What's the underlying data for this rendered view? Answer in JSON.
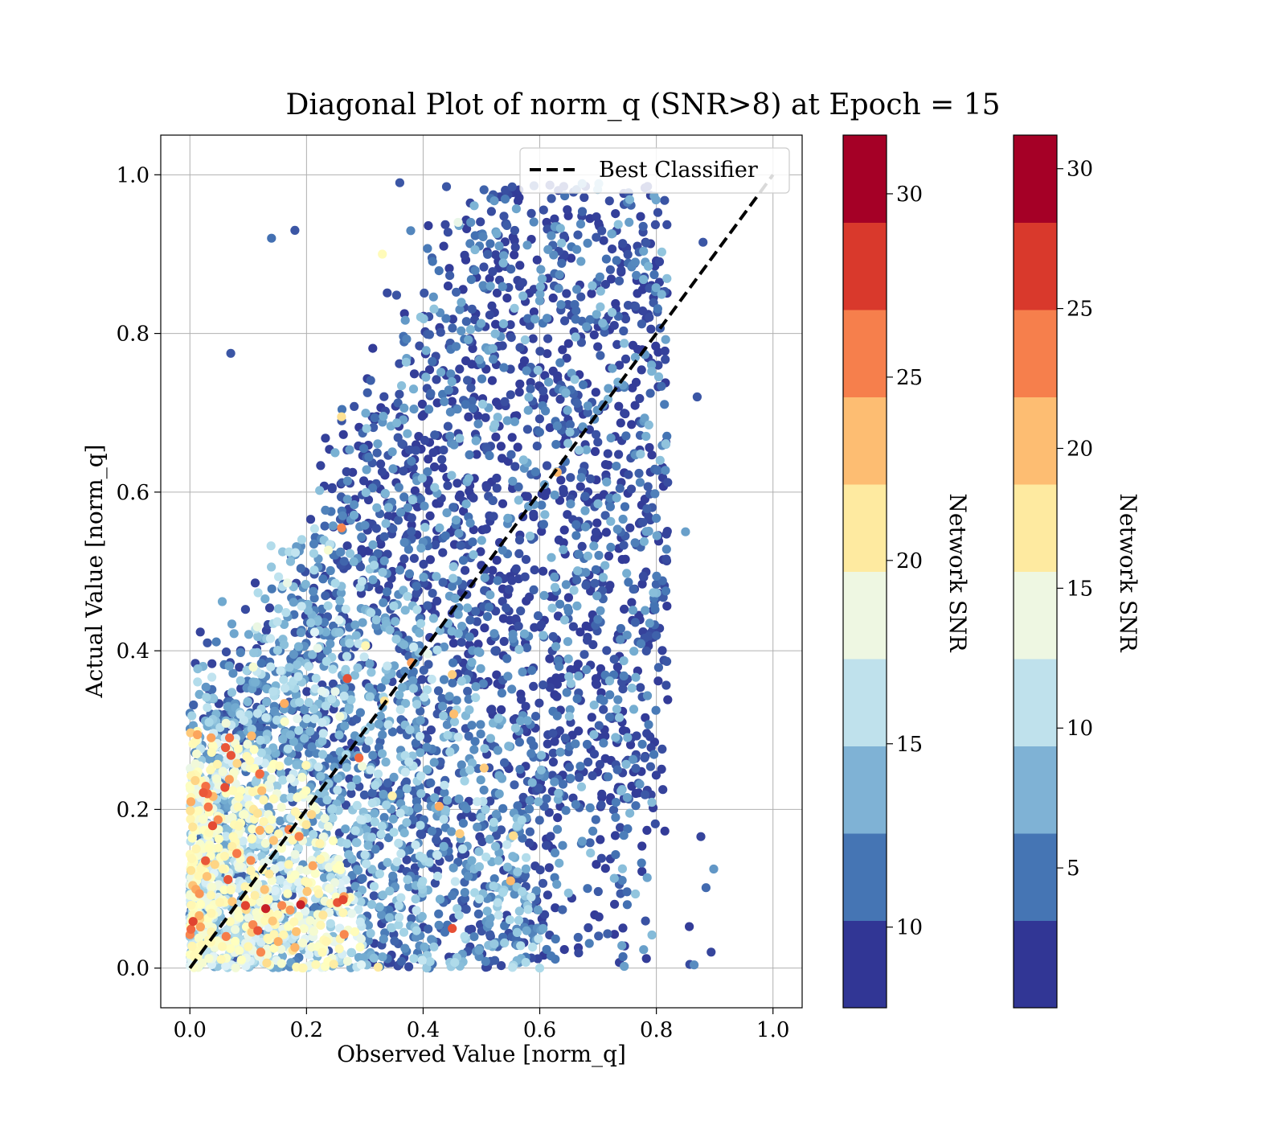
{
  "chart_data": {
    "type": "scatter",
    "title": "Diagonal Plot of norm_q (SNR>8) at Epoch = 15",
    "xlabel": "Observed Value [norm_q]",
    "ylabel": "Actual Value [norm_q]",
    "xlim": [
      -0.05,
      1.05
    ],
    "ylim": [
      -0.05,
      1.05
    ],
    "xticks": [
      "0.0",
      "0.2",
      "0.4",
      "0.6",
      "0.8",
      "1.0"
    ],
    "yticks": [
      "0.0",
      "0.2",
      "0.4",
      "0.6",
      "0.8",
      "1.0"
    ],
    "grid": true,
    "legend": {
      "placement": "top-right",
      "entries": [
        "Best Classifier"
      ]
    },
    "reference_line": {
      "name": "Best Classifier",
      "x": [
        0,
        1
      ],
      "y": [
        0,
        1
      ],
      "style": "dashed",
      "color": "#000000"
    },
    "point_color_variable": "Network SNR",
    "colormap": [
      "#313695",
      "#4575b4",
      "#74add1",
      "#abd9e9",
      "#e0f3f8",
      "#ffffbf",
      "#fee090",
      "#fdae61",
      "#f46d43",
      "#d73027",
      "#a50026"
    ],
    "colorbars": [
      {
        "label": "Network SNR",
        "range": [
          7.8,
          31.6
        ],
        "colors": [
          "#313695",
          "#4575b4",
          "#7fb2d5",
          "#bfe1ec",
          "#eef7e2",
          "#feeaa0",
          "#fdbd72",
          "#f67f4c",
          "#d9392c",
          "#a50026"
        ],
        "tick_values": [
          10,
          15,
          20,
          25,
          30
        ],
        "tick_labels": [
          "10",
          "15",
          "20",
          "25",
          "30"
        ]
      },
      {
        "label": "Network SNR",
        "range": [
          0.0,
          31.2
        ],
        "colors": [
          "#313695",
          "#4575b4",
          "#7fb2d5",
          "#bfe1ec",
          "#eef7e2",
          "#feeaa0",
          "#fdbd72",
          "#f67f4c",
          "#d9392c",
          "#a50026"
        ],
        "tick_values": [
          5,
          10,
          15,
          20,
          25,
          30
        ],
        "tick_labels": [
          "5",
          "10",
          "15",
          "20",
          "25",
          "30"
        ]
      }
    ],
    "point_density_regions": [
      {
        "x_range": [
          0.0,
          0.3
        ],
        "y_range": [
          0.0,
          0.3
        ],
        "typical_snr": "high (15–30)"
      },
      {
        "x_range": [
          0.1,
          0.6
        ],
        "y_range": [
          0.0,
          0.7
        ],
        "typical_snr": "medium (10–15)"
      },
      {
        "x_range": [
          0.2,
          0.88
        ],
        "y_range": [
          0.2,
          0.99
        ],
        "typical_snr": "low (8–10)"
      }
    ],
    "sample_points": [
      {
        "x": 0.07,
        "y": 0.775,
        "snr": 9
      },
      {
        "x": 0.03,
        "y": 0.41,
        "snr": 9
      },
      {
        "x": 0.36,
        "y": 0.99,
        "snr": 9
      },
      {
        "x": 0.44,
        "y": 0.985,
        "snr": 9
      },
      {
        "x": 0.14,
        "y": 0.92,
        "snr": 10
      },
      {
        "x": 0.18,
        "y": 0.93,
        "snr": 9
      },
      {
        "x": 0.33,
        "y": 0.9,
        "snr": 20
      },
      {
        "x": 0.46,
        "y": 0.94,
        "snr": 18
      },
      {
        "x": 0.63,
        "y": 0.625,
        "snr": 24
      },
      {
        "x": 0.62,
        "y": 0.97,
        "snr": 9
      },
      {
        "x": 0.88,
        "y": 0.915,
        "snr": 9
      },
      {
        "x": 0.85,
        "y": 0.55,
        "snr": 12
      },
      {
        "x": 0.87,
        "y": 0.72,
        "snr": 9
      },
      {
        "x": 0.78,
        "y": 0.265,
        "snr": 9
      },
      {
        "x": 0.75,
        "y": 0.215,
        "snr": 12
      },
      {
        "x": 0.75,
        "y": 0.08,
        "snr": 10
      },
      {
        "x": 0.6,
        "y": 0.0,
        "snr": 15
      },
      {
        "x": 0.55,
        "y": 0.11,
        "snr": 24
      },
      {
        "x": 0.38,
        "y": 0.385,
        "snr": 25
      },
      {
        "x": 0.27,
        "y": 0.365,
        "snr": 28
      },
      {
        "x": 0.29,
        "y": 0.265,
        "snr": 27
      },
      {
        "x": 0.13,
        "y": 0.075,
        "snr": 30
      },
      {
        "x": 0.19,
        "y": 0.08,
        "snr": 30
      },
      {
        "x": 0.45,
        "y": 0.05,
        "snr": 28
      },
      {
        "x": 0.12,
        "y": 0.245,
        "snr": 27
      },
      {
        "x": 0.26,
        "y": 0.695,
        "snr": 22
      },
      {
        "x": 0.26,
        "y": 0.555,
        "snr": 26
      },
      {
        "x": 0.45,
        "y": 0.37,
        "snr": 23
      }
    ]
  }
}
